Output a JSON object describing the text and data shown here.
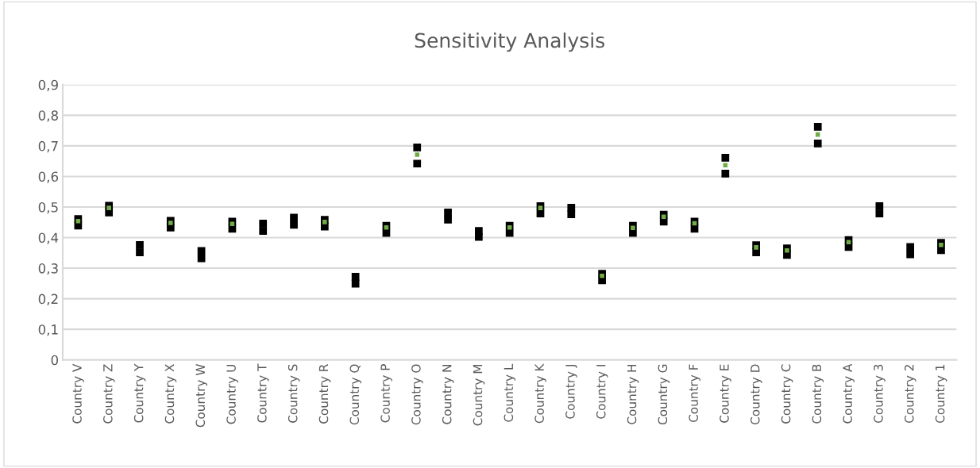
{
  "chart_data": {
    "type": "scatter",
    "title": "Sensitivity Analysis",
    "categories": [
      "Country V",
      "Country Z",
      "Country Y",
      "Country X",
      "Country W",
      "Country U",
      "Country T",
      "Country S",
      "Country R",
      "Country Q",
      "Country P",
      "Country O",
      "Country N",
      "Country M",
      "Country L",
      "Country K",
      "Country J",
      "Country I",
      "Country H",
      "Country G",
      "Country F",
      "Country E",
      "Country D",
      "Country C",
      "Country B",
      "Country A",
      "Country 3",
      "Country 2",
      "Country 1"
    ],
    "series": [
      {
        "color": "#000000",
        "values": [
          0.461,
          0.504,
          0.376,
          0.455,
          0.356,
          0.452,
          0.446,
          0.465,
          0.458,
          0.272,
          0.439,
          0.695,
          0.482,
          0.422,
          0.439,
          0.503,
          0.498,
          0.282,
          0.439,
          0.475,
          0.452,
          0.661,
          0.375,
          0.365,
          0.762,
          0.392,
          0.503,
          0.369,
          0.383
        ]
      },
      {
        "color": "#000000",
        "values": [
          0.439,
          0.482,
          0.352,
          0.433,
          0.332,
          0.429,
          0.422,
          0.442,
          0.436,
          0.249,
          0.415,
          0.642,
          0.459,
          0.402,
          0.415,
          0.479,
          0.476,
          0.26,
          0.415,
          0.452,
          0.429,
          0.609,
          0.352,
          0.343,
          0.708,
          0.369,
          0.479,
          0.345,
          0.359
        ]
      },
      {
        "color": "#70ad47",
        "values": [
          0.454,
          0.497,
          null,
          0.448,
          null,
          0.445,
          null,
          null,
          0.451,
          null,
          0.433,
          0.671,
          null,
          null,
          0.433,
          0.497,
          null,
          0.275,
          0.432,
          0.468,
          0.447,
          0.637,
          0.368,
          0.358,
          0.737,
          0.385,
          null,
          null,
          0.376
        ]
      }
    ],
    "marker": "square",
    "ylim": [
      0,
      0.9
    ],
    "yticks": [
      0,
      {
        "value": 0.1,
        "label": "0,1"
      },
      {
        "value": 0.2,
        "label": "0,2"
      },
      {
        "value": 0.3,
        "label": "0,3"
      },
      {
        "value": 0.4,
        "label": "0,4"
      },
      {
        "value": 0.5,
        "label": "0,5"
      },
      {
        "value": 0.6,
        "label": "0,6"
      },
      {
        "value": 0.7,
        "label": "0,7"
      },
      {
        "value": 0.8,
        "label": "0,8"
      },
      {
        "value": 0.9,
        "label": "0,9"
      }
    ],
    "grid": "y"
  }
}
